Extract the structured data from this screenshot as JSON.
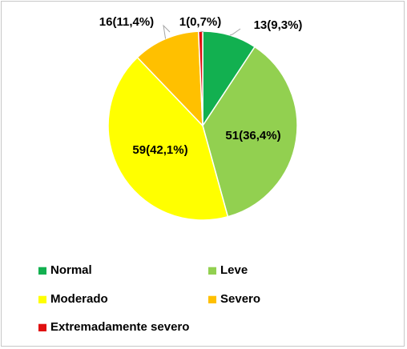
{
  "chart_data": {
    "type": "pie",
    "title": "",
    "start_angle_deg": 0,
    "direction": "clockwise",
    "slices": [
      {
        "name": "Normal",
        "value": 13,
        "label": "13(9,3%)",
        "color": "#12b050"
      },
      {
        "name": "Leve",
        "value": 51,
        "label": "51(36,4%)",
        "color": "#92d050"
      },
      {
        "name": "Moderado",
        "value": 59,
        "label": "59(42,1%)",
        "color": "#ffff00"
      },
      {
        "name": "Severo",
        "value": 16,
        "label": "16(11,4%)",
        "color": "#ffc000"
      },
      {
        "name": "Extremadamente severo",
        "value": 1,
        "label": "1(0,7%)",
        "color": "#e01010"
      }
    ],
    "legend": {
      "placement": "bottom",
      "entries": [
        "Normal",
        "Leve",
        "Moderado",
        "Severo",
        "Extremadamente severo"
      ]
    }
  }
}
